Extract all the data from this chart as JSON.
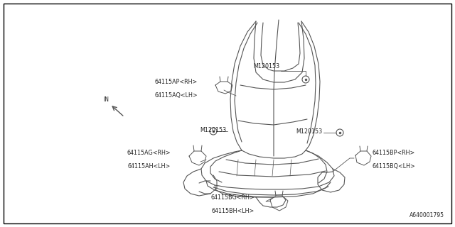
{
  "background_color": "#ffffff",
  "border_color": "#000000",
  "part_number": "A640001795",
  "line_color": "#555555",
  "text_color": "#222222",
  "figsize": [
    6.4,
    3.2
  ],
  "dpi": 100,
  "xlim": [
    0,
    640
  ],
  "ylim": [
    0,
    320
  ]
}
